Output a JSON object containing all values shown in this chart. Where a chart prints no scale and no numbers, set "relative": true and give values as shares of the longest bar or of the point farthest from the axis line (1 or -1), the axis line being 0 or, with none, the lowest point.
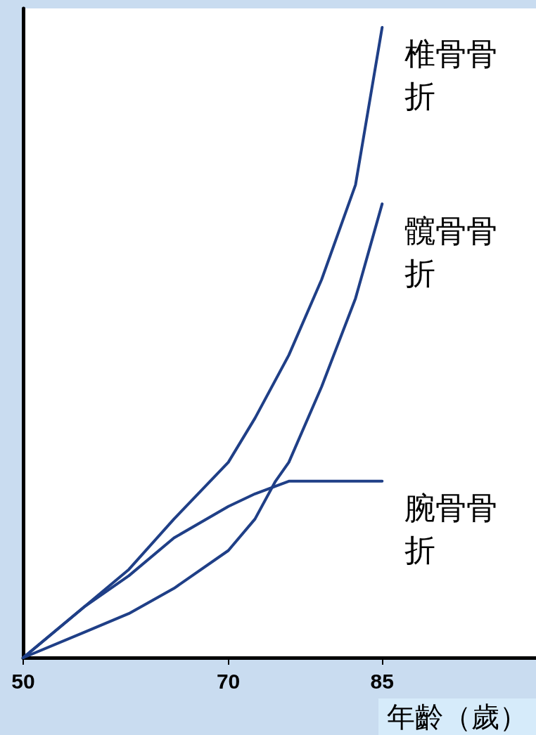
{
  "chart_data": {
    "type": "line",
    "relative": true,
    "xlabel": "年齡（歲）",
    "xlim": [
      50,
      100
    ],
    "xticks": [
      50,
      70,
      85
    ],
    "grid": false,
    "legend": false,
    "marker": "none",
    "line_style": "solid",
    "series": [
      {
        "name": "椎骨骨折",
        "color": "#1f3f87",
        "x": [
          50,
          55.9,
          60.3,
          64.7,
          70,
          72.6,
          75.9,
          79.1,
          82.4,
          85
        ],
        "values": [
          0,
          0.08,
          0.14,
          0.22,
          0.31,
          0.38,
          0.48,
          0.6,
          0.75,
          1
        ]
      },
      {
        "name": "髖骨骨折",
        "color": "#1f3f87",
        "x": [
          50,
          55.9,
          60.3,
          64.7,
          70,
          72.6,
          74.6,
          75.9,
          79.1,
          82.4,
          85
        ],
        "values": [
          0,
          0.04,
          0.07,
          0.11,
          0.17,
          0.22,
          0.28,
          0.31,
          0.43,
          0.57,
          0.72
        ]
      },
      {
        "name": "腕骨骨折",
        "color": "#1f3f87",
        "x": [
          50,
          55.9,
          60.3,
          64.7,
          70,
          72.6,
          75.9,
          79.1,
          82.4,
          85
        ],
        "values": [
          0,
          0.08,
          0.13,
          0.19,
          0.24,
          0.26,
          0.28,
          0.28,
          0.28,
          0.28
        ]
      }
    ]
  }
}
